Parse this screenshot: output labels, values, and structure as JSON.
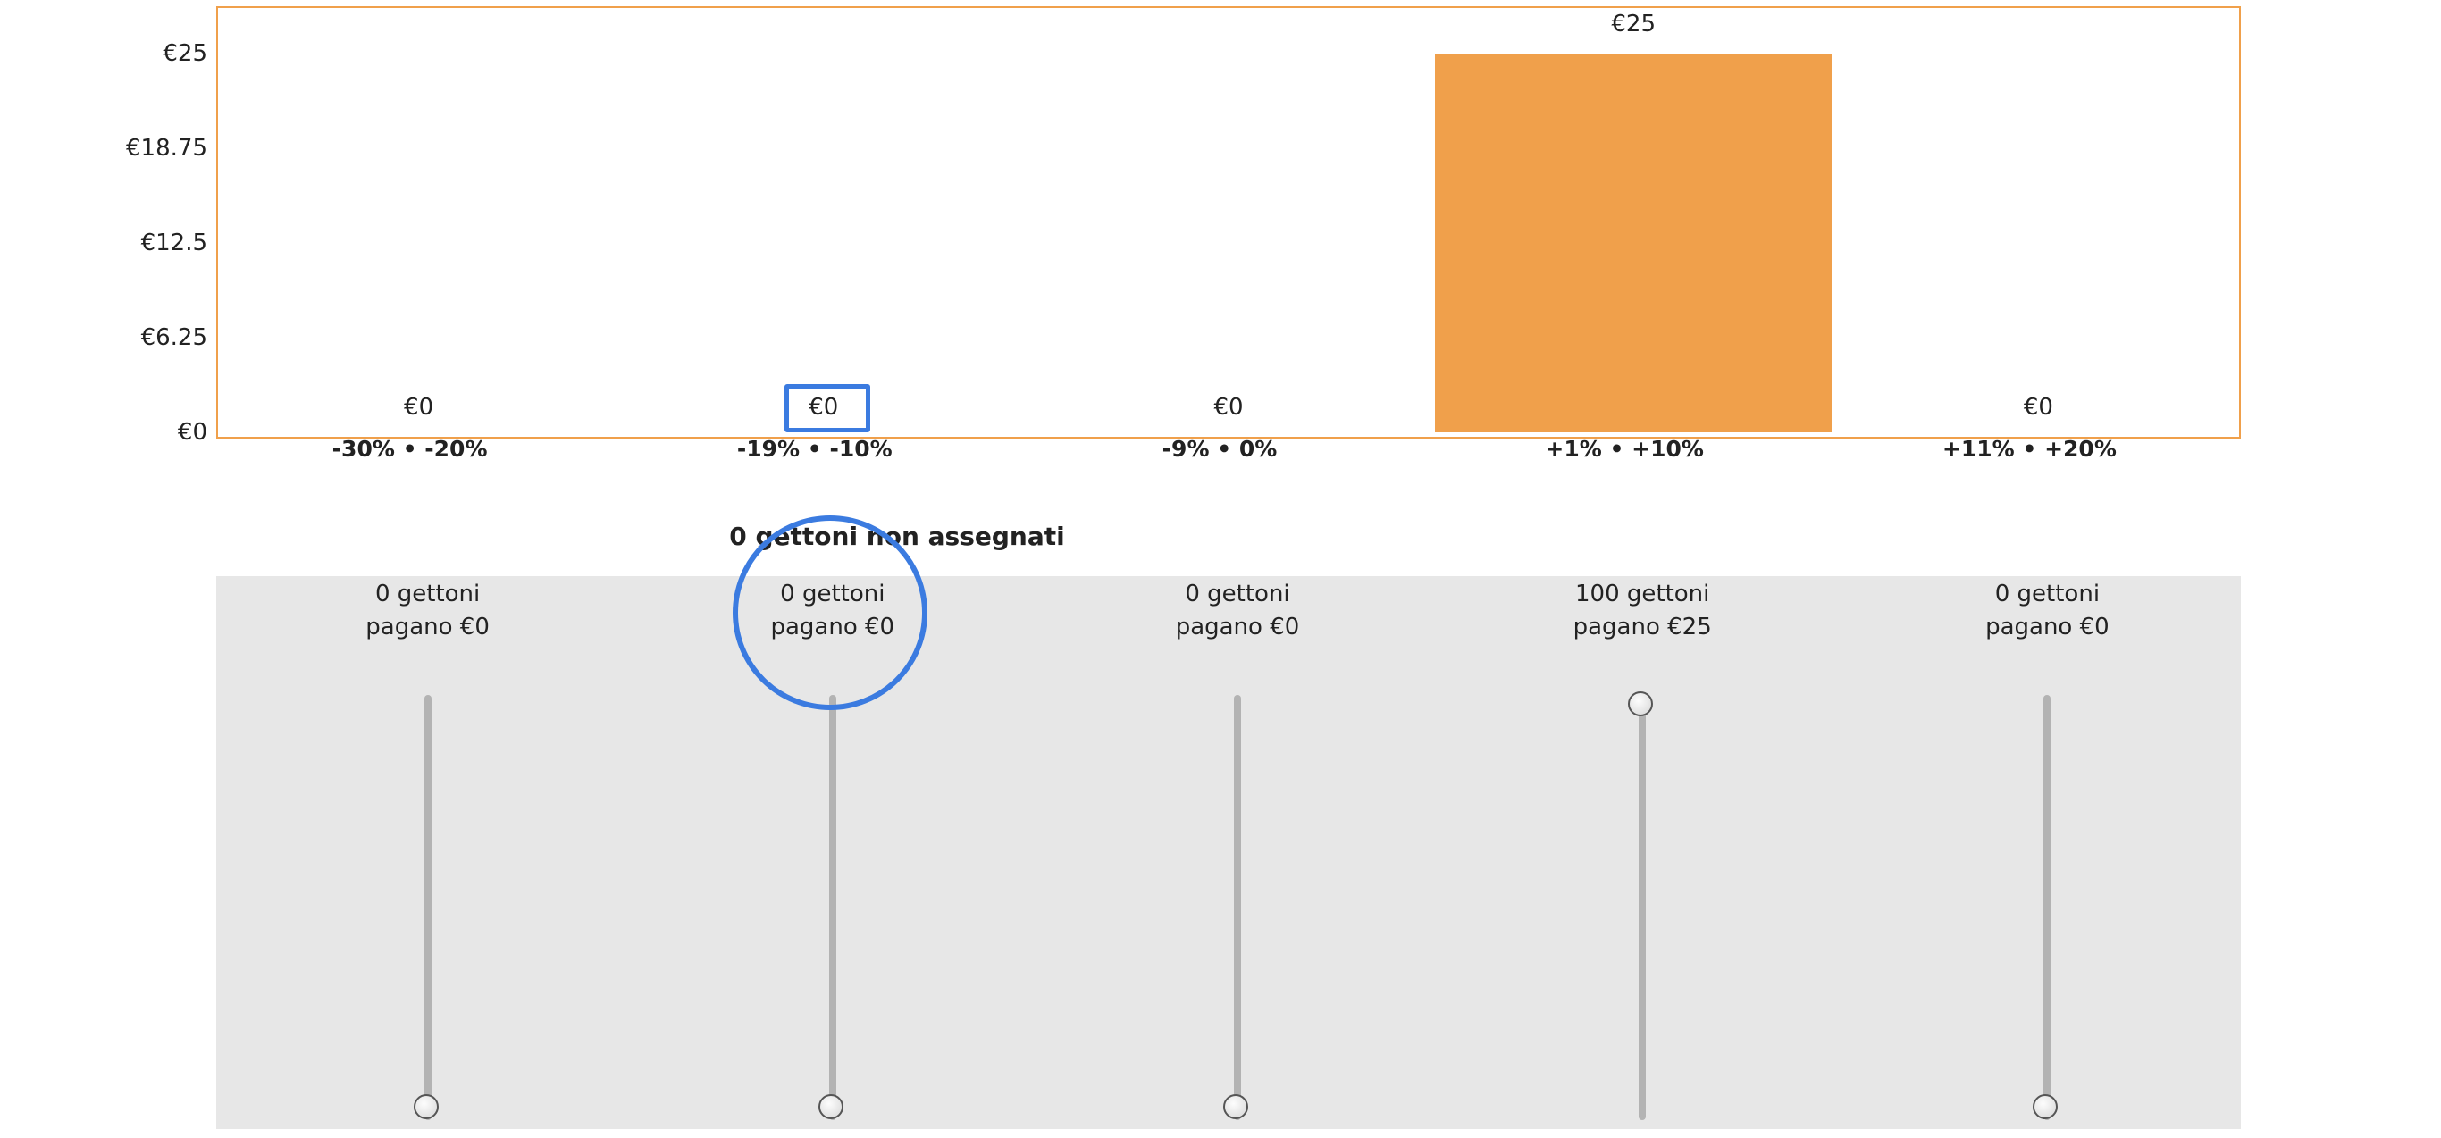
{
  "chart_data": {
    "type": "bar",
    "categories": [
      "-30% • -20%",
      "-19% • -10%",
      "-9% • 0%",
      "+1% • +10%",
      "+11% • +20%"
    ],
    "values": [
      0,
      0,
      0,
      25,
      0
    ],
    "value_labels": [
      "€0",
      "€0",
      "€0",
      "€25",
      "€0"
    ],
    "yticks": [
      "€0",
      "€6.25",
      "€12.5",
      "€18.75",
      "€25"
    ],
    "ylim": [
      0,
      25
    ],
    "bar_color": "#f0a04b",
    "grid": false
  },
  "allocation": {
    "unassigned_text": "0 gettoni non assegnati",
    "tokens_max": 100,
    "sliders": [
      {
        "tokens_text": "0 gettoni",
        "pays_text": "pagano €0",
        "tokens": 0
      },
      {
        "tokens_text": "0 gettoni",
        "pays_text": "pagano €0",
        "tokens": 0
      },
      {
        "tokens_text": "0 gettoni",
        "pays_text": "pagano €0",
        "tokens": 0
      },
      {
        "tokens_text": "100 gettoni",
        "pays_text": "pagano €25",
        "tokens": 100
      },
      {
        "tokens_text": "0 gettoni",
        "pays_text": "pagano €0",
        "tokens": 0
      }
    ]
  },
  "colors": {
    "accent": "#f0a04b",
    "focus": "#3b7be0",
    "panel_bg": "#e7e7e7"
  }
}
